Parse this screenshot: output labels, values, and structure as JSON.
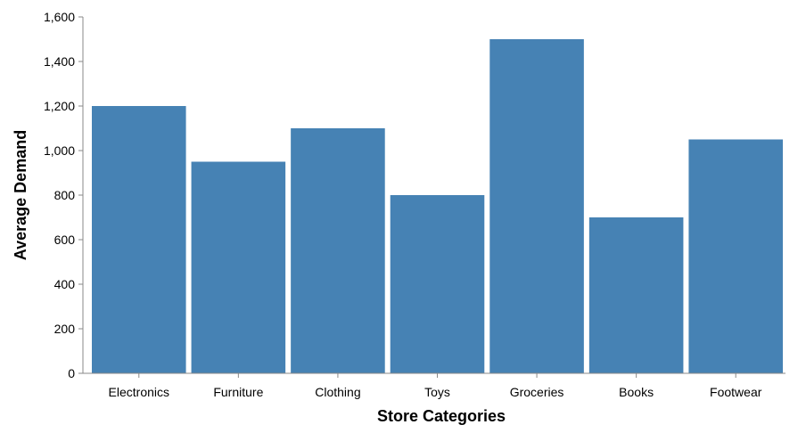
{
  "chart_data": {
    "type": "bar",
    "categories": [
      "Electronics",
      "Furniture",
      "Clothing",
      "Toys",
      "Groceries",
      "Books",
      "Footwear"
    ],
    "values": [
      1200,
      950,
      1100,
      800,
      1500,
      700,
      1050
    ],
    "xlabel": "Store Categories",
    "ylabel": "Average Demand",
    "ylim": [
      0,
      1600
    ],
    "yticks": [
      0,
      200,
      400,
      600,
      800,
      1000,
      1200,
      1400,
      1600
    ],
    "ytick_labels": [
      "0",
      "200",
      "400",
      "600",
      "800",
      "1,000",
      "1,200",
      "1,400",
      "1,600"
    ],
    "bar_color": "#4682b4",
    "grid": false,
    "legend": "none"
  }
}
